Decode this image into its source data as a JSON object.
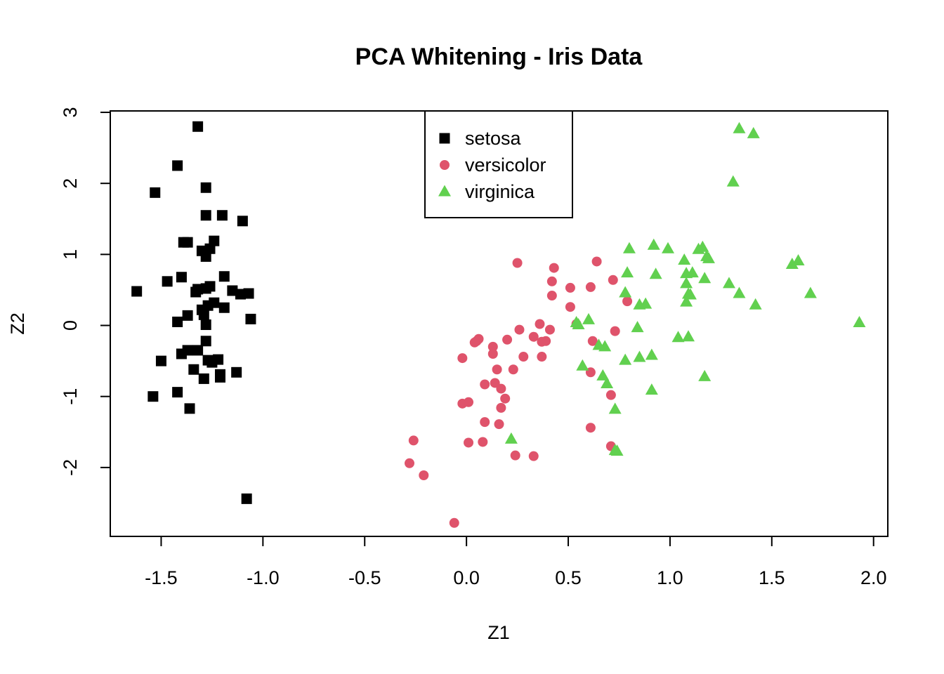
{
  "chart_data": {
    "type": "scatter",
    "title": "PCA Whitening - Iris Data",
    "xlabel": "Z1",
    "ylabel": "Z2",
    "xlim": [
      -1.75,
      2.07
    ],
    "ylim": [
      -2.97,
      3.02
    ],
    "xticks": [
      -1.5,
      -1.0,
      -0.5,
      0.0,
      0.5,
      1.0,
      1.5,
      2.0
    ],
    "xtick_labels": [
      "-1.5",
      "-1.0",
      "-0.5",
      "0.0",
      "0.5",
      "1.0",
      "1.5",
      "2.0"
    ],
    "yticks": [
      -2,
      -1,
      0,
      1,
      2,
      3
    ],
    "ytick_labels": [
      "-2",
      "-1",
      "0",
      "1",
      "2",
      "3"
    ],
    "legend_position": "top-center",
    "series": [
      {
        "name": "setosa",
        "marker": "square",
        "color": "#000000",
        "points": [
          [
            -1.32,
            2.8
          ],
          [
            -1.42,
            2.25
          ],
          [
            -1.53,
            1.87
          ],
          [
            -1.28,
            1.94
          ],
          [
            -1.28,
            1.55
          ],
          [
            -1.2,
            1.55
          ],
          [
            -1.1,
            1.47
          ],
          [
            -1.39,
            1.17
          ],
          [
            -1.37,
            1.17
          ],
          [
            -1.24,
            1.19
          ],
          [
            -1.3,
            1.05
          ],
          [
            -1.26,
            1.08
          ],
          [
            -1.28,
            0.97
          ],
          [
            -1.19,
            0.69
          ],
          [
            -1.4,
            0.68
          ],
          [
            -1.47,
            0.62
          ],
          [
            -1.62,
            0.48
          ],
          [
            -1.32,
            0.51
          ],
          [
            -1.33,
            0.47
          ],
          [
            -1.28,
            0.52
          ],
          [
            -1.26,
            0.55
          ],
          [
            -1.15,
            0.49
          ],
          [
            -1.11,
            0.44
          ],
          [
            -1.07,
            0.45
          ],
          [
            -1.24,
            0.32
          ],
          [
            -1.27,
            0.28
          ],
          [
            -1.3,
            0.22
          ],
          [
            -1.29,
            0.15
          ],
          [
            -1.37,
            0.14
          ],
          [
            -1.19,
            0.25
          ],
          [
            -1.06,
            0.09
          ],
          [
            -1.42,
            0.05
          ],
          [
            -1.28,
            0.01
          ],
          [
            -1.28,
            -0.22
          ],
          [
            -1.37,
            -0.35
          ],
          [
            -1.32,
            -0.35
          ],
          [
            -1.4,
            -0.4
          ],
          [
            -1.5,
            -0.5
          ],
          [
            -1.27,
            -0.49
          ],
          [
            -1.25,
            -0.52
          ],
          [
            -1.22,
            -0.48
          ],
          [
            -1.34,
            -0.62
          ],
          [
            -1.13,
            -0.66
          ],
          [
            -1.21,
            -0.69
          ],
          [
            -1.21,
            -0.73
          ],
          [
            -1.29,
            -0.75
          ],
          [
            -1.42,
            -0.94
          ],
          [
            -1.54,
            -1.0
          ],
          [
            -1.36,
            -1.17
          ],
          [
            -1.08,
            -2.44
          ]
        ]
      },
      {
        "name": "versicolor",
        "marker": "circle",
        "color": "#DF536B",
        "points": [
          [
            0.25,
            0.88
          ],
          [
            0.64,
            0.9
          ],
          [
            0.43,
            0.81
          ],
          [
            0.42,
            0.62
          ],
          [
            0.51,
            0.53
          ],
          [
            0.61,
            0.54
          ],
          [
            0.72,
            0.64
          ],
          [
            0.42,
            0.42
          ],
          [
            0.51,
            0.26
          ],
          [
            0.79,
            0.34
          ],
          [
            0.36,
            0.02
          ],
          [
            0.54,
            0.02
          ],
          [
            0.41,
            -0.06
          ],
          [
            0.26,
            -0.06
          ],
          [
            0.73,
            -0.08
          ],
          [
            0.33,
            -0.16
          ],
          [
            0.39,
            -0.22
          ],
          [
            0.37,
            -0.23
          ],
          [
            0.06,
            -0.19
          ],
          [
            0.05,
            -0.22
          ],
          [
            0.04,
            -0.24
          ],
          [
            0.62,
            -0.22
          ],
          [
            0.2,
            -0.2
          ],
          [
            0.13,
            -0.3
          ],
          [
            0.13,
            -0.4
          ],
          [
            0.28,
            -0.44
          ],
          [
            -0.02,
            -0.46
          ],
          [
            0.37,
            -0.44
          ],
          [
            0.15,
            -0.62
          ],
          [
            0.23,
            -0.62
          ],
          [
            0.61,
            -0.66
          ],
          [
            0.09,
            -0.83
          ],
          [
            0.14,
            -0.81
          ],
          [
            0.17,
            -0.89
          ],
          [
            0.19,
            -1.03
          ],
          [
            0.71,
            -0.98
          ],
          [
            -0.02,
            -1.1
          ],
          [
            0.01,
            -1.08
          ],
          [
            0.17,
            -1.16
          ],
          [
            0.09,
            -1.36
          ],
          [
            0.16,
            -1.39
          ],
          [
            0.61,
            -1.44
          ],
          [
            -0.26,
            -1.62
          ],
          [
            0.01,
            -1.65
          ],
          [
            0.08,
            -1.64
          ],
          [
            0.71,
            -1.7
          ],
          [
            0.24,
            -1.83
          ],
          [
            0.33,
            -1.84
          ],
          [
            -0.28,
            -1.94
          ],
          [
            -0.21,
            -2.11
          ],
          [
            -0.06,
            -2.78
          ]
        ]
      },
      {
        "name": "virginica",
        "marker": "triangle",
        "color": "#61D04F",
        "points": [
          [
            1.34,
            2.77
          ],
          [
            1.41,
            2.7
          ],
          [
            1.31,
            2.02
          ],
          [
            0.92,
            1.13
          ],
          [
            0.8,
            1.08
          ],
          [
            0.99,
            1.08
          ],
          [
            1.16,
            1.1
          ],
          [
            1.14,
            1.07
          ],
          [
            1.18,
            0.97
          ],
          [
            1.19,
            0.94
          ],
          [
            1.07,
            0.92
          ],
          [
            1.6,
            0.86
          ],
          [
            1.63,
            0.91
          ],
          [
            0.79,
            0.74
          ],
          [
            0.93,
            0.72
          ],
          [
            1.08,
            0.73
          ],
          [
            1.11,
            0.74
          ],
          [
            1.17,
            0.66
          ],
          [
            1.08,
            0.59
          ],
          [
            1.29,
            0.59
          ],
          [
            1.09,
            0.44
          ],
          [
            1.1,
            0.43
          ],
          [
            1.08,
            0.33
          ],
          [
            1.34,
            0.45
          ],
          [
            1.69,
            0.45
          ],
          [
            0.78,
            0.46
          ],
          [
            0.85,
            0.29
          ],
          [
            0.88,
            0.3
          ],
          [
            1.42,
            0.29
          ],
          [
            1.93,
            0.04
          ],
          [
            0.54,
            0.04
          ],
          [
            0.55,
            0.01
          ],
          [
            0.6,
            0.08
          ],
          [
            0.84,
            -0.03
          ],
          [
            1.04,
            -0.17
          ],
          [
            1.09,
            -0.16
          ],
          [
            0.65,
            -0.28
          ],
          [
            0.68,
            -0.3
          ],
          [
            0.78,
            -0.49
          ],
          [
            0.85,
            -0.45
          ],
          [
            0.91,
            -0.42
          ],
          [
            0.57,
            -0.57
          ],
          [
            0.67,
            -0.71
          ],
          [
            0.69,
            -0.82
          ],
          [
            1.17,
            -0.72
          ],
          [
            0.91,
            -0.91
          ],
          [
            0.73,
            -1.18
          ],
          [
            0.22,
            -1.6
          ],
          [
            0.73,
            -1.76
          ],
          [
            0.74,
            -1.77
          ]
        ]
      }
    ]
  }
}
